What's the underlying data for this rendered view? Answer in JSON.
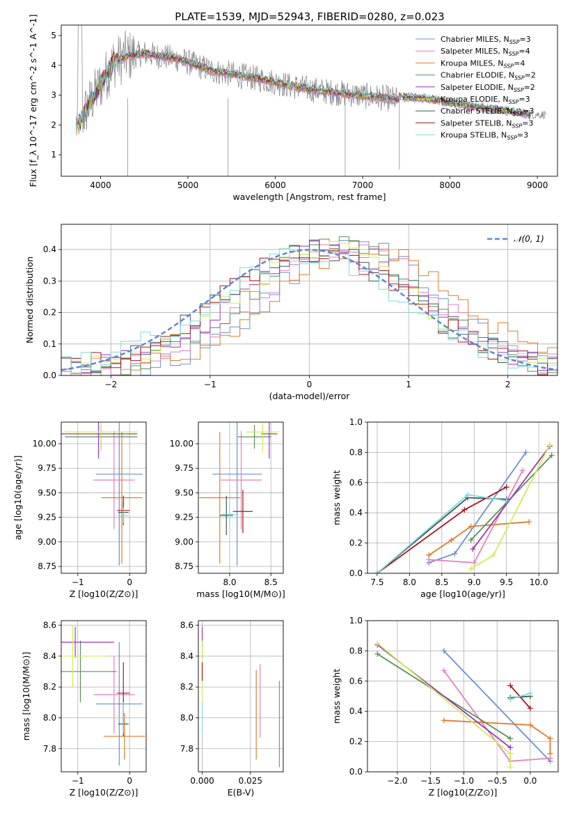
{
  "title": "PLATE=1539, MJD=52943, FIBERID=0280, z=0.023",
  "colors": {
    "Chabrier MILES": "#6a8fd6",
    "Salpeter MILES": "#e87fba",
    "Kroupa MILES": "#e07b2a",
    "Chabrier ELODIE": "#5a8f5a",
    "Salpeter ELODIE": "#9b35b8",
    "Kroupa ELODIE": "#ccee55",
    "Chabrier STELIB": "#3a5858",
    "Salpeter STELIB": "#a8161c",
    "Kroupa STELIB": "#7fd8dc",
    "data": "#7f7f7f",
    "gauss": "#5b86d0"
  },
  "chart_data": [
    {
      "id": "spectrum",
      "type": "line",
      "title": "PLATE=1539, MJD=52943, FIBERID=0280, z=0.023",
      "xlabel": "wavelength [Angstrom, rest frame]",
      "ylabel": "Flux [f_λ 10^-17 erg cm^-2 s^-1 A^-1]",
      "xlim": [
        3550,
        9230
      ],
      "ylim": [
        0.28,
        5.35
      ],
      "xticks": [
        4000,
        5000,
        6000,
        7000,
        8000,
        9000
      ],
      "yticks": [
        1,
        2,
        3,
        4,
        5
      ],
      "grid": false,
      "legend_position": "upper-right",
      "legend": [
        {
          "name": "Chabrier MILES",
          "nssp": "3"
        },
        {
          "name": "Salpeter MILES",
          "nssp": "4"
        },
        {
          "name": "Kroupa MILES",
          "nssp": "4"
        },
        {
          "name": "Chabrier ELODIE",
          "nssp": "2"
        },
        {
          "name": "Salpeter ELODIE",
          "nssp": "2"
        },
        {
          "name": "Kroupa ELODIE",
          "nssp": "3"
        },
        {
          "name": "Chabrier STELIB",
          "nssp": "3"
        },
        {
          "name": "Salpeter STELIB",
          "nssp": "3"
        },
        {
          "name": "Kroupa STELIB",
          "nssp": "3"
        }
      ],
      "continuum_model": {
        "wavelength": [
          3750,
          3850,
          3950,
          4050,
          4150,
          4300,
          4500,
          4700,
          4900,
          5100,
          5300,
          5600,
          5900,
          6200,
          6500,
          6800,
          7100,
          7400
        ],
        "flux": [
          2.0,
          2.6,
          3.1,
          3.6,
          4.1,
          4.3,
          4.4,
          4.3,
          4.2,
          4.0,
          3.8,
          3.65,
          3.5,
          3.3,
          3.15,
          3.05,
          2.95,
          2.85
        ]
      },
      "continuum_red": {
        "wavelength": [
          7400,
          7700,
          8000,
          8300,
          8600,
          8900
        ],
        "flux": [
          2.95,
          2.9,
          2.75,
          2.6,
          2.5,
          2.35
        ]
      }
    },
    {
      "id": "residuals",
      "type": "histogram",
      "xlabel": "(data-model)/error",
      "ylabel": "Normed distribution",
      "xlim": [
        -2.5,
        2.5
      ],
      "ylim": [
        0,
        0.48
      ],
      "xticks": [
        -2,
        -1,
        0,
        1,
        2
      ],
      "yticks": [
        0.0,
        0.1,
        0.2,
        0.3,
        0.4
      ],
      "grid": true,
      "legend_position": "upper-right",
      "legend_label": "𝒩(0, 1)",
      "gaussian": {
        "mean": 0,
        "sigma": 1
      },
      "bin_width": 0.1,
      "series": [
        {
          "name": "Chabrier MILES",
          "shift": 0.45,
          "sigma": 0.83,
          "amp": 0.4
        },
        {
          "name": "Salpeter MILES",
          "shift": 0.38,
          "sigma": 0.86,
          "amp": 0.4
        },
        {
          "name": "Kroupa MILES",
          "shift": 0.55,
          "sigma": 0.92,
          "amp": 0.39
        },
        {
          "name": "Chabrier ELODIE",
          "shift": 0.28,
          "sigma": 0.85,
          "amp": 0.4
        },
        {
          "name": "Salpeter ELODIE",
          "shift": 0.18,
          "sigma": 0.9,
          "amp": 0.39
        },
        {
          "name": "Kroupa ELODIE",
          "shift": 0.15,
          "sigma": 0.92,
          "amp": 0.38
        },
        {
          "name": "Chabrier STELIB",
          "shift": 0.08,
          "sigma": 0.95,
          "amp": 0.38
        },
        {
          "name": "Salpeter STELIB",
          "shift": 0.05,
          "sigma": 0.96,
          "amp": 0.38
        },
        {
          "name": "Kroupa STELIB",
          "shift": 0.0,
          "sigma": 0.98,
          "amp": 0.37
        }
      ]
    },
    {
      "id": "age-vs-Z",
      "type": "errorbar",
      "xlabel": "Z [log10(Z/Z⊙)]",
      "ylabel": "age  [log10(age/yr)]",
      "xlim": [
        -1.32,
        0.32
      ],
      "ylim": [
        8.68,
        10.22
      ],
      "xticks": [
        -1,
        0
      ],
      "yticks": [
        8.75,
        9.0,
        9.25,
        9.5,
        9.75,
        10.0
      ],
      "grid": true,
      "points": [
        {
          "series": "Chabrier MILES",
          "x": -0.2,
          "xerr": 0.45,
          "y": 9.69,
          "yerr": 0.93
        },
        {
          "series": "Salpeter MILES",
          "x": -0.3,
          "xerr": 0.4,
          "y": 9.63,
          "yerr": 0.5
        },
        {
          "series": "Kroupa MILES",
          "x": -0.15,
          "xerr": 0.4,
          "y": 9.45,
          "yerr": 0.67
        },
        {
          "series": "Chabrier STELIB",
          "x": -0.12,
          "xerr": 0.1,
          "y": 9.3,
          "yerr": 0.1
        },
        {
          "series": "Salpeter STELIB",
          "x": -0.12,
          "xerr": 0.12,
          "y": 9.32,
          "yerr": 0.15
        },
        {
          "series": "Kroupa STELIB",
          "x": -0.12,
          "xerr": 0.1,
          "y": 9.27,
          "yerr": 0.08
        },
        {
          "series": "Chabrier ELODIE",
          "x": -0.55,
          "xerr": 0.7,
          "y": 10.07,
          "yerr": 0.12
        },
        {
          "series": "Salpeter ELODIE",
          "x": -0.6,
          "xerr": 0.75,
          "y": 10.1,
          "yerr": 0.25
        },
        {
          "series": "Kroupa ELODIE",
          "x": -0.55,
          "xerr": 0.7,
          "y": 10.12,
          "yerr": 0.2
        }
      ]
    },
    {
      "id": "age-vs-mass",
      "type": "errorbar",
      "xlabel": "mass [log10(M/M⊙)]",
      "ylabel": "",
      "xlim": [
        7.62,
        8.65
      ],
      "ylim": [
        8.68,
        10.22
      ],
      "xticks": [
        8.0,
        8.5
      ],
      "yticks": [
        8.75,
        9.0,
        9.25,
        9.5,
        9.75,
        10.0
      ],
      "grid": true,
      "points": [
        {
          "series": "Chabrier MILES",
          "x": 8.09,
          "xerr": 0.3,
          "y": 9.69,
          "yerr": 0.93
        },
        {
          "series": "Salpeter MILES",
          "x": 8.14,
          "xerr": 0.25,
          "y": 9.63,
          "yerr": 0.5
        },
        {
          "series": "Kroupa MILES",
          "x": 7.88,
          "xerr": 0.25,
          "y": 9.45,
          "yerr": 0.67
        },
        {
          "series": "Chabrier STELIB",
          "x": 7.96,
          "xerr": 0.08,
          "y": 9.27,
          "yerr": 0.2
        },
        {
          "series": "Salpeter STELIB",
          "x": 8.16,
          "xerr": 0.12,
          "y": 9.31,
          "yerr": 0.22
        },
        {
          "series": "Kroupa STELIB",
          "x": 8.0,
          "xerr": 0.1,
          "y": 9.28,
          "yerr": 0.1
        },
        {
          "series": "Chabrier ELODIE",
          "x": 8.3,
          "xerr": 0.2,
          "y": 10.07,
          "yerr": 0.12
        },
        {
          "series": "Salpeter ELODIE",
          "x": 8.48,
          "xerr": 0.1,
          "y": 10.1,
          "yerr": 0.25
        },
        {
          "series": "Kroupa ELODIE",
          "x": 8.4,
          "xerr": 0.2,
          "y": 10.12,
          "yerr": 0.2
        }
      ]
    },
    {
      "id": "weight-vs-age",
      "type": "line",
      "xlabel": "age  [log10(age/yr)]",
      "ylabel": "mass weight",
      "xlim": [
        7.35,
        10.3
      ],
      "ylim": [
        0,
        1.0
      ],
      "xticks": [
        7.5,
        8.0,
        8.5,
        9.0,
        9.5,
        10.0
      ],
      "yticks": [
        0.0,
        0.2,
        0.4,
        0.6,
        0.8,
        1.0
      ],
      "grid": true,
      "series": [
        {
          "name": "Chabrier MILES",
          "x": [
            8.3,
            8.7,
            9.8
          ],
          "y": [
            0.07,
            0.13,
            0.8
          ]
        },
        {
          "name": "Salpeter MILES",
          "x": [
            8.3,
            9.0,
            9.75
          ],
          "y": [
            0.09,
            0.07,
            0.68
          ]
        },
        {
          "name": "Kroupa MILES",
          "x": [
            8.3,
            8.65,
            8.95,
            9.85
          ],
          "y": [
            0.12,
            0.22,
            0.31,
            0.34
          ]
        },
        {
          "name": "Chabrier ELODIE",
          "x": [
            8.95,
            10.2
          ],
          "y": [
            0.22,
            0.78
          ]
        },
        {
          "name": "Salpeter ELODIE",
          "x": [
            8.98,
            10.17
          ],
          "y": [
            0.16,
            0.84
          ]
        },
        {
          "name": "Kroupa ELODIE",
          "x": [
            8.95,
            9.3,
            10.17
          ],
          "y": [
            0.03,
            0.12,
            0.85
          ]
        },
        {
          "name": "Chabrier STELIB",
          "x": [
            7.5,
            8.9,
            9.5
          ],
          "y": [
            0.0,
            0.5,
            0.49
          ]
        },
        {
          "name": "Salpeter STELIB",
          "x": [
            7.5,
            8.85,
            9.5
          ],
          "y": [
            0.0,
            0.42,
            0.57
          ]
        },
        {
          "name": "Kroupa STELIB",
          "x": [
            7.5,
            8.9,
            9.5
          ],
          "y": [
            0.0,
            0.52,
            0.48
          ]
        }
      ]
    },
    {
      "id": "mass-vs-Z",
      "type": "errorbar",
      "xlabel": "Z [log10(Z/Z⊙)]",
      "ylabel": "mass [log10(M/M⊙)]",
      "xlim": [
        -1.32,
        0.32
      ],
      "ylim": [
        7.65,
        8.63
      ],
      "xticks": [
        -1,
        0
      ],
      "yticks": [
        7.8,
        8.0,
        8.2,
        8.4,
        8.6
      ],
      "grid": true,
      "points": [
        {
          "series": "Chabrier MILES",
          "x": -0.2,
          "xerr": 0.45,
          "y": 8.09,
          "yerr": 0.4
        },
        {
          "series": "Salpeter MILES",
          "x": -0.3,
          "xerr": 0.4,
          "y": 8.15,
          "yerr": 0.25
        },
        {
          "series": "Kroupa MILES",
          "x": -0.1,
          "xerr": 0.4,
          "y": 7.88,
          "yerr": 0.15
        },
        {
          "series": "Chabrier STELIB",
          "x": -0.12,
          "xerr": 0.1,
          "y": 7.96,
          "yerr": 0.08
        },
        {
          "series": "Salpeter STELIB",
          "x": -0.12,
          "xerr": 0.12,
          "y": 8.16,
          "yerr": 0.2
        },
        {
          "series": "Kroupa STELIB",
          "x": -0.12,
          "xerr": 0.1,
          "y": 8.0,
          "yerr": 0.1
        },
        {
          "series": "Chabrier ELODIE",
          "x": -0.95,
          "xerr": 0.7,
          "y": 8.3,
          "yerr": 0.2
        },
        {
          "series": "Salpeter ELODIE",
          "x": -1.05,
          "xerr": 0.75,
          "y": 8.49,
          "yerr": 0.1
        },
        {
          "series": "Kroupa ELODIE",
          "x": -1.1,
          "xerr": 0.7,
          "y": 8.4,
          "yerr": 0.2
        }
      ]
    },
    {
      "id": "mass-vs-ebv",
      "type": "errorbar",
      "xlabel": "E(B-V)",
      "ylabel": "",
      "xlim": [
        -0.002,
        0.042
      ],
      "ylim": [
        7.65,
        8.63
      ],
      "xticks": [
        0.0,
        0.025
      ],
      "xtick_labels": [
        "0.000",
        "0.025"
      ],
      "yticks": [
        7.8,
        8.0,
        8.2,
        8.4,
        8.6
      ],
      "grid": true,
      "points": [
        {
          "series": "Chabrier MILES",
          "x": 0.04,
          "xerr": 0,
          "y": 7.96,
          "yerr": 0.28
        },
        {
          "series": "Salpeter MILES",
          "x": 0.03,
          "xerr": 0,
          "y": 8.11,
          "yerr": 0.24
        },
        {
          "series": "Kroupa MILES",
          "x": 0.028,
          "xerr": 0,
          "y": 8.02,
          "yerr": 0.29
        },
        {
          "series": "Salpeter ELODIE",
          "x": 0.0,
          "xerr": 0,
          "y": 8.49,
          "yerr": 0.1
        },
        {
          "series": "Kroupa ELODIE",
          "x": 0.0,
          "xerr": 0,
          "y": 8.3,
          "yerr": 0.2
        },
        {
          "series": "Salpeter STELIB",
          "x": 0.0,
          "xerr": 0,
          "y": 8.3,
          "yerr": 0.06
        },
        {
          "series": "Kroupa STELIB",
          "x": 0.0,
          "xerr": 0,
          "y": 8.0,
          "yerr": 0.1
        }
      ]
    },
    {
      "id": "weight-vs-Z",
      "type": "line",
      "xlabel": "Z [log10(Z/Z⊙)]",
      "ylabel": "mass weight",
      "xlim": [
        -2.45,
        0.42
      ],
      "ylim": [
        0,
        1.0
      ],
      "xticks": [
        -2.0,
        -1.5,
        -1.0,
        -0.5,
        0.0
      ],
      "yticks": [
        0.0,
        0.2,
        0.4,
        0.6,
        0.8,
        1.0
      ],
      "grid": true,
      "series": [
        {
          "name": "Chabrier MILES",
          "x": [
            -1.3,
            0.3
          ],
          "y": [
            0.8,
            0.07
          ]
        },
        {
          "name": "Salpeter MILES",
          "x": [
            -1.3,
            -0.3,
            0.3
          ],
          "y": [
            0.67,
            0.07,
            0.09
          ]
        },
        {
          "name": "Kroupa MILES",
          "x": [
            -1.3,
            0.0,
            0.3,
            0.3
          ],
          "y": [
            0.34,
            0.31,
            0.22,
            0.12
          ]
        },
        {
          "name": "Chabrier ELODIE",
          "x": [
            -2.3,
            -0.3
          ],
          "y": [
            0.78,
            0.22
          ]
        },
        {
          "name": "Salpeter ELODIE",
          "x": [
            -2.3,
            -0.3
          ],
          "y": [
            0.84,
            0.16
          ]
        },
        {
          "name": "Kroupa ELODIE",
          "x": [
            -2.3,
            -0.3,
            -0.3
          ],
          "y": [
            0.85,
            0.12,
            0.03
          ]
        },
        {
          "name": "Chabrier STELIB",
          "x": [
            -0.3,
            0.0
          ],
          "y": [
            0.49,
            0.5
          ]
        },
        {
          "name": "Salpeter STELIB",
          "x": [
            -0.3,
            0.0
          ],
          "y": [
            0.57,
            0.42
          ]
        },
        {
          "name": "Kroupa STELIB",
          "x": [
            -0.3,
            0.0
          ],
          "y": [
            0.48,
            0.52
          ]
        }
      ]
    }
  ]
}
